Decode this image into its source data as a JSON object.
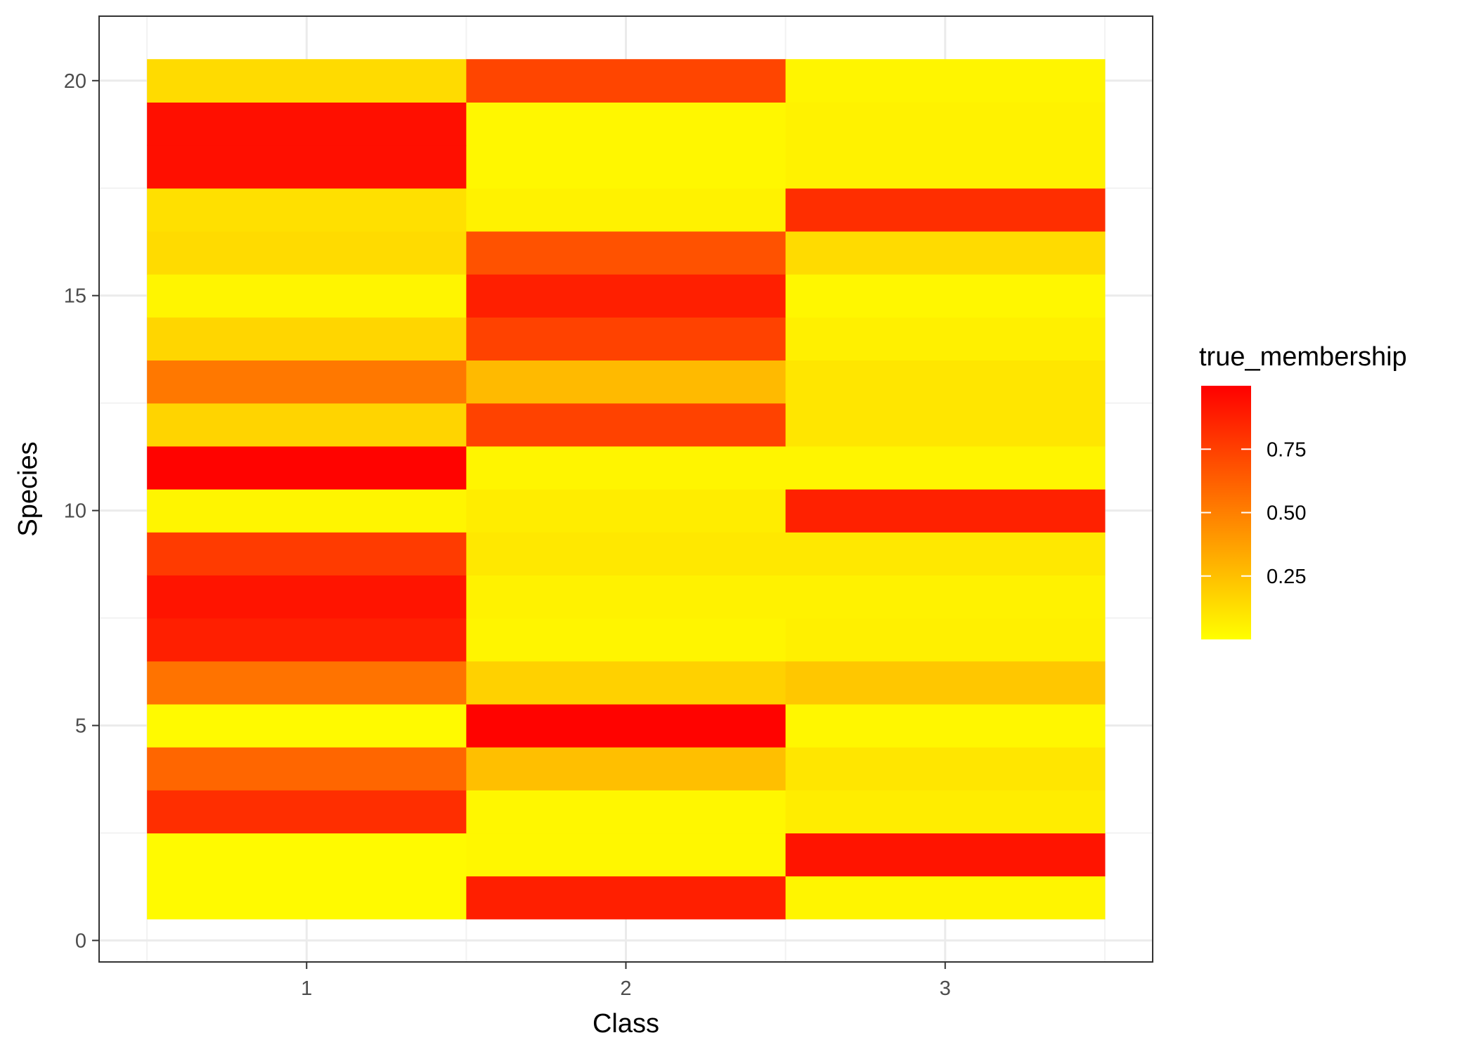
{
  "chart_data": {
    "type": "heatmap",
    "xlabel": "Class",
    "ylabel": "Species",
    "x_categories": [
      "1",
      "2",
      "3"
    ],
    "y_ticks": [
      "0",
      "5",
      "10",
      "15",
      "20"
    ],
    "xlim": [
      0.5,
      3.5
    ],
    "ylim": [
      0,
      20.5
    ],
    "grid": true,
    "legend": {
      "title": "true_membership",
      "placement": "right",
      "labels": [
        "0.75",
        "0.50",
        "0.25"
      ],
      "label_values": [
        0.75,
        0.5,
        0.25
      ],
      "range": [
        0.0,
        1.0
      ],
      "colors": [
        "#ffff00",
        "#ff0000"
      ]
    },
    "rows": [
      {
        "species": 1,
        "values": [
          0.02,
          0.88,
          0.04
        ]
      },
      {
        "species": 2,
        "values": [
          0.02,
          0.03,
          0.92
        ]
      },
      {
        "species": 3,
        "values": [
          0.82,
          0.03,
          0.07
        ]
      },
      {
        "species": 4,
        "values": [
          0.6,
          0.25,
          0.1
        ]
      },
      {
        "species": 5,
        "values": [
          0.02,
          0.99,
          0.03
        ]
      },
      {
        "species": 6,
        "values": [
          0.55,
          0.18,
          0.22
        ]
      },
      {
        "species": 7,
        "values": [
          0.88,
          0.04,
          0.06
        ]
      },
      {
        "species": 8,
        "values": [
          0.92,
          0.05,
          0.05
        ]
      },
      {
        "species": 9,
        "values": [
          0.77,
          0.09,
          0.09
        ]
      },
      {
        "species": 10,
        "values": [
          0.04,
          0.07,
          0.87
        ]
      },
      {
        "species": 11,
        "values": [
          0.99,
          0.04,
          0.04
        ]
      },
      {
        "species": 12,
        "values": [
          0.17,
          0.74,
          0.1
        ]
      },
      {
        "species": 13,
        "values": [
          0.53,
          0.27,
          0.1
        ]
      },
      {
        "species": 14,
        "values": [
          0.16,
          0.74,
          0.06
        ]
      },
      {
        "species": 15,
        "values": [
          0.04,
          0.88,
          0.03
        ]
      },
      {
        "species": 16,
        "values": [
          0.14,
          0.68,
          0.14
        ]
      },
      {
        "species": 17,
        "values": [
          0.12,
          0.05,
          0.82
        ]
      },
      {
        "species": 18,
        "values": [
          0.94,
          0.03,
          0.05
        ]
      },
      {
        "species": 19,
        "values": [
          0.94,
          0.03,
          0.05
        ]
      },
      {
        "species": 20,
        "values": [
          0.14,
          0.73,
          0.04
        ]
      }
    ]
  }
}
